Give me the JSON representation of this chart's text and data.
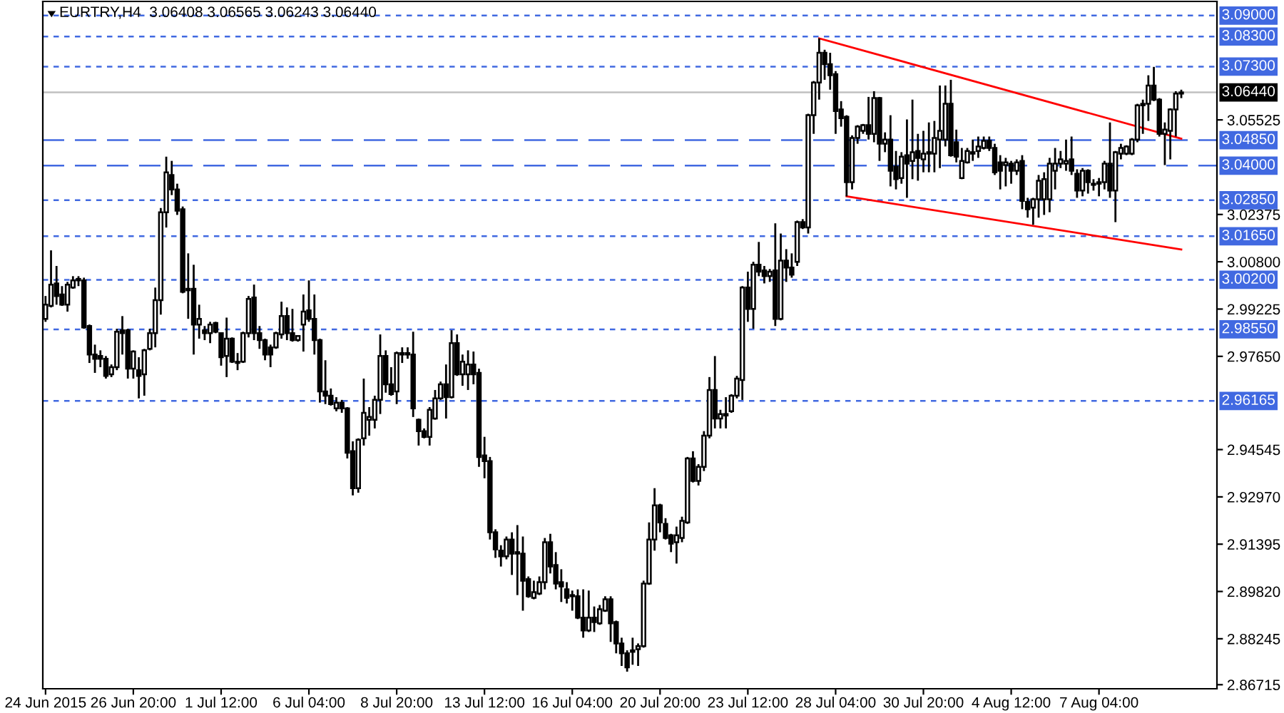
{
  "chart_data": {
    "type": "candlestick",
    "title": "EURTRY,H4  3.06408 3.06565 3.06243 3.06440",
    "categories": [
      "24 Jun 2015",
      null,
      null,
      null,
      null,
      null,
      null,
      null,
      null,
      null,
      null,
      null,
      null,
      null,
      null,
      null,
      "26 Jun 20:00",
      null,
      null,
      null,
      null,
      null,
      null,
      null,
      null,
      null,
      null,
      null,
      null,
      null,
      null,
      null,
      "1 Jul 12:00",
      null,
      null,
      null,
      null,
      null,
      null,
      null,
      null,
      null,
      null,
      null,
      null,
      null,
      null,
      null,
      "6 Jul 04:00",
      null,
      null,
      null,
      null,
      null,
      null,
      null,
      null,
      null,
      null,
      null,
      null,
      null,
      null,
      null,
      "8 Jul 20:00",
      null,
      null,
      null,
      null,
      null,
      null,
      null,
      null,
      null,
      null,
      null,
      null,
      null,
      null,
      null,
      "13 Jul 12:00",
      null,
      null,
      null,
      null,
      null,
      null,
      null,
      null,
      null,
      null,
      null,
      null,
      null,
      null,
      null,
      "16 Jul 04:00",
      null,
      null,
      null,
      null,
      null,
      null,
      null,
      null,
      null,
      null,
      null,
      null,
      null,
      null,
      null,
      "20 Jul 20:00",
      null,
      null,
      null,
      null,
      null,
      null,
      null,
      null,
      null,
      null,
      null,
      null,
      null,
      null,
      null,
      "23 Jul 12:00",
      null,
      null,
      null,
      null,
      null,
      null,
      null,
      null,
      null,
      null,
      null,
      null,
      null,
      null,
      null,
      "28 Jul 04:00",
      null,
      null,
      null,
      null,
      null,
      null,
      null,
      null,
      null,
      null,
      null,
      null,
      null,
      null,
      null,
      "30 Jul 20:00",
      null,
      null,
      null,
      null,
      null,
      null,
      null,
      null,
      null,
      null,
      null,
      null,
      null,
      null,
      null,
      "4 Aug 12:00",
      null,
      null,
      null,
      null,
      null,
      null,
      null,
      null,
      null,
      null,
      null,
      null,
      null,
      null,
      null,
      "7 Aug 04:00",
      null,
      null,
      null,
      null,
      null,
      null,
      null,
      null,
      null,
      null,
      null,
      null,
      null,
      null,
      null
    ],
    "ohlc": [
      [
        2.989,
        2.9966,
        2.988,
        2.9937
      ],
      [
        2.9933,
        3.0118,
        2.9928,
        3.0004
      ],
      [
        3.0008,
        3.0066,
        2.9937,
        2.9966
      ],
      [
        2.9971,
        2.9999,
        2.9933,
        2.9937
      ],
      [
        2.9937,
        3.0013,
        2.9914,
        3.0004
      ],
      [
        2.9994,
        3.0032,
        2.999,
        3.0018
      ],
      [
        3.0018,
        3.0032,
        2.9999,
        3.0023
      ],
      [
        3.0018,
        3.0027,
        2.9857,
        2.9861
      ],
      [
        2.9866,
        2.9871,
        2.9743,
        2.9771
      ],
      [
        2.9771,
        2.9804,
        2.971,
        2.9757
      ],
      [
        2.9766,
        2.9785,
        2.9729,
        2.9757
      ],
      [
        2.9757,
        2.9766,
        2.9691,
        2.97
      ],
      [
        2.9705,
        2.9738,
        2.9696,
        2.9729
      ],
      [
        2.9729,
        2.9857,
        2.9719,
        2.9847
      ],
      [
        2.9852,
        2.9899,
        2.9771,
        2.9842
      ],
      [
        2.9852,
        2.9857,
        2.9691,
        2.9724
      ],
      [
        2.9724,
        2.9785,
        2.9691,
        2.9781
      ],
      [
        2.9719,
        2.9762,
        2.9625,
        2.97
      ],
      [
        2.9705,
        2.979,
        2.9634,
        2.9785
      ],
      [
        2.979,
        2.9857,
        2.9785,
        2.9842
      ],
      [
        2.9842,
        2.9994,
        2.9795,
        2.9952
      ],
      [
        2.9952,
        3.0259,
        2.9904,
        3.0245
      ],
      [
        3.0245,
        3.043,
        3.0194,
        3.0378
      ],
      [
        3.0369,
        3.0416,
        3.0302,
        3.0321
      ],
      [
        3.0321,
        3.034,
        3.0236,
        3.025
      ],
      [
        3.0255,
        3.0264,
        2.9975,
        2.998
      ],
      [
        2.999,
        3.0108,
        2.989,
        2.9985
      ],
      [
        2.999,
        3.007,
        2.9771,
        2.9871
      ],
      [
        2.9871,
        2.9937,
        2.9824,
        2.989
      ],
      [
        2.9852,
        2.9866,
        2.9819,
        2.9842
      ],
      [
        2.9842,
        2.988,
        2.9809,
        2.9871
      ],
      [
        2.9876,
        2.988,
        2.9842,
        2.9847
      ],
      [
        2.9842,
        2.9842,
        2.9734,
        2.9762
      ],
      [
        2.9766,
        2.9894,
        2.9696,
        2.9824
      ],
      [
        2.9824,
        2.9828,
        2.9743,
        2.9747
      ],
      [
        2.9747,
        2.9776,
        2.9719,
        2.9743
      ],
      [
        2.9747,
        2.9847,
        2.9743,
        2.9842
      ],
      [
        2.9842,
        2.9966,
        2.9828,
        2.9956
      ],
      [
        2.9961,
        3.0004,
        2.9819,
        2.9842
      ],
      [
        2.9842,
        2.9866,
        2.979,
        2.9819
      ],
      [
        2.9819,
        2.9824,
        2.9752,
        2.9771
      ],
      [
        2.9795,
        2.9804,
        2.9729,
        2.9771
      ],
      [
        2.9795,
        2.9847,
        2.979,
        2.9842
      ],
      [
        2.9838,
        2.9947,
        2.9824,
        2.9899
      ],
      [
        2.9899,
        2.9928,
        2.9819,
        2.9842
      ],
      [
        2.9842,
        2.9923,
        2.9814,
        2.9819
      ],
      [
        2.9819,
        2.9833,
        2.9814,
        2.9833
      ],
      [
        2.9871,
        2.9971,
        2.9781,
        2.9914
      ],
      [
        2.9918,
        3.0018,
        2.988,
        2.989
      ],
      [
        2.989,
        2.9971,
        2.9771,
        2.9819
      ],
      [
        2.9819,
        2.9824,
        2.9611,
        2.9648
      ],
      [
        2.9648,
        2.9752,
        2.9606,
        2.9634
      ],
      [
        2.9634,
        2.9658,
        2.9601,
        2.9606
      ],
      [
        2.9592,
        2.9629,
        2.9582,
        2.9611
      ],
      [
        2.9611,
        2.962,
        2.9577,
        2.9592
      ],
      [
        2.9592,
        2.9596,
        2.9425,
        2.9444
      ],
      [
        2.9449,
        2.9482,
        2.9302,
        2.9326
      ],
      [
        2.9326,
        2.9492,
        2.9311,
        2.9487
      ],
      [
        2.9492,
        2.9691,
        2.9468,
        2.9577
      ],
      [
        2.9554,
        2.9596,
        2.9501,
        2.9563
      ],
      [
        2.9554,
        2.9634,
        2.9525,
        2.962
      ],
      [
        2.962,
        2.9838,
        2.9573,
        2.9766
      ],
      [
        2.9766,
        2.9785,
        2.9644,
        2.9672
      ],
      [
        2.9672,
        2.9729,
        2.9634,
        2.9639
      ],
      [
        2.9648,
        2.9781,
        2.9606,
        2.9776
      ],
      [
        2.9771,
        2.9795,
        2.9743,
        2.9776
      ],
      [
        2.9771,
        2.9795,
        2.9757,
        2.9776
      ],
      [
        2.9771,
        2.9847,
        2.9563,
        2.9592
      ],
      [
        2.9554,
        2.9558,
        2.9468,
        2.9516
      ],
      [
        2.9516,
        2.9525,
        2.9492,
        2.9497
      ],
      [
        2.9497,
        2.9596,
        2.9468,
        2.9587
      ],
      [
        2.9558,
        2.9653,
        2.9554,
        2.9625
      ],
      [
        2.9625,
        2.9681,
        2.962,
        2.9672
      ],
      [
        2.9672,
        2.9738,
        2.9558,
        2.9629
      ],
      [
        2.9629,
        2.9852,
        2.9625,
        2.9809
      ],
      [
        2.9809,
        2.9838,
        2.97,
        2.9705
      ],
      [
        2.9705,
        2.9771,
        2.9667,
        2.9747
      ],
      [
        2.9705,
        2.9785,
        2.9653,
        2.9738
      ],
      [
        2.9738,
        2.9781,
        2.9672,
        2.9705
      ],
      [
        2.971,
        2.9724,
        2.9397,
        2.943
      ],
      [
        2.9435,
        2.9497,
        2.9359,
        2.9416
      ],
      [
        2.9416,
        2.943,
        2.9155,
        2.9179
      ],
      [
        2.9179,
        2.9189,
        2.9094,
        2.9122
      ],
      [
        2.9118,
        2.9136,
        2.9065,
        2.9099
      ],
      [
        2.9099,
        2.9165,
        2.9089,
        2.9155
      ],
      [
        2.9155,
        2.9179,
        2.9037,
        2.9108
      ],
      [
        2.9108,
        2.9203,
        2.897,
        2.9113
      ],
      [
        2.9108,
        2.9165,
        2.8918,
        2.9018
      ],
      [
        2.9023,
        2.9032,
        2.8961,
        2.8966
      ],
      [
        2.8961,
        2.9018,
        2.8956,
        2.898
      ],
      [
        2.8975,
        2.9032,
        2.897,
        2.9013
      ],
      [
        2.9013,
        2.916,
        2.8989,
        2.9146
      ],
      [
        2.9146,
        2.9174,
        2.9042,
        2.9065
      ],
      [
        2.907,
        2.9113,
        2.8989,
        2.9008
      ],
      [
        2.9013,
        2.9056,
        2.8947,
        2.8999
      ],
      [
        2.8989,
        2.9013,
        2.8942,
        2.8961
      ],
      [
        2.8966,
        2.8985,
        2.8918,
        2.897
      ],
      [
        2.8966,
        2.8989,
        2.889,
        2.8895
      ],
      [
        2.8895,
        2.8989,
        2.8828,
        2.8852
      ],
      [
        2.8852,
        2.8985,
        2.8847,
        2.8895
      ],
      [
        2.8895,
        2.8932,
        2.8847,
        2.888
      ],
      [
        2.8876,
        2.8937,
        2.8871,
        2.8923
      ],
      [
        2.8918,
        2.8966,
        2.8914,
        2.8956
      ],
      [
        2.8956,
        2.8966,
        2.8814,
        2.8876
      ],
      [
        2.888,
        2.8885,
        2.8776,
        2.8809
      ],
      [
        2.8809,
        2.8828,
        2.8734,
        2.8776
      ],
      [
        2.8776,
        2.8786,
        2.8715,
        2.8729
      ],
      [
        2.8781,
        2.8828,
        2.8738,
        2.8786
      ],
      [
        2.879,
        2.8809,
        2.8734,
        2.88
      ],
      [
        2.88,
        2.9018,
        2.8795,
        2.9008
      ],
      [
        2.9008,
        2.9212,
        2.9004,
        2.9155
      ],
      [
        2.9155,
        2.9326,
        2.9118,
        2.9269
      ],
      [
        2.9269,
        2.9274,
        2.9179,
        2.9212
      ],
      [
        2.9207,
        2.9226,
        2.9155,
        2.916
      ],
      [
        2.9169,
        2.9174,
        2.9113,
        2.9141
      ],
      [
        2.9146,
        2.9198,
        2.9075,
        2.9169
      ],
      [
        2.916,
        2.9231,
        2.9146,
        2.9217
      ],
      [
        2.9212,
        2.943,
        2.9207,
        2.9425
      ],
      [
        2.9425,
        2.9449,
        2.9345,
        2.935
      ],
      [
        2.935,
        2.9406,
        2.9335,
        2.9397
      ],
      [
        2.9397,
        2.9516,
        2.9383,
        2.9501
      ],
      [
        2.9501,
        2.9696,
        2.9492,
        2.9653
      ],
      [
        2.9653,
        2.9766,
        2.9525,
        2.9558
      ],
      [
        2.9558,
        2.9587,
        2.9525,
        2.9573
      ],
      [
        2.9568,
        2.9629,
        2.9525,
        2.9573
      ],
      [
        2.9582,
        2.9639,
        2.9577,
        2.9634
      ],
      [
        2.9634,
        2.97,
        2.9625,
        2.9691
      ],
      [
        2.9686,
        2.9999,
        2.962,
        2.9994
      ],
      [
        2.9994,
        3.0047,
        2.988,
        2.9923
      ],
      [
        2.9923,
        3.008,
        2.9857,
        3.007
      ],
      [
        3.007,
        3.0146,
        3.0032,
        3.0047
      ],
      [
        3.0051,
        3.0066,
        3.0008,
        3.0032
      ],
      [
        3.0032,
        3.0056,
        3.0013,
        3.0047
      ],
      [
        3.0051,
        3.0208,
        2.9866,
        2.989
      ],
      [
        2.989,
        3.0174,
        2.9885,
        3.0084
      ],
      [
        3.0084,
        3.0122,
        3.0013,
        3.0061
      ],
      [
        3.0061,
        3.0108,
        3.0027,
        3.0037
      ],
      [
        3.008,
        3.0217,
        3.0066,
        3.0212
      ],
      [
        3.0212,
        3.0222,
        3.0189,
        3.0194
      ],
      [
        3.0194,
        3.0573,
        3.0174,
        3.0568
      ],
      [
        3.0568,
        3.0682,
        3.0506,
        3.0677
      ],
      [
        3.0677,
        3.0824,
        3.062,
        3.0776
      ],
      [
        3.0776,
        3.0786,
        3.0686,
        3.0738
      ],
      [
        3.0738,
        3.0776,
        3.0653,
        3.0701
      ],
      [
        3.0705,
        3.0715,
        3.0506,
        3.0582
      ],
      [
        3.0587,
        3.0615,
        3.053,
        3.0558
      ],
      [
        3.0563,
        3.0568,
        3.0298,
        3.0345
      ],
      [
        3.0345,
        3.0501,
        3.0321,
        3.0492
      ],
      [
        3.0492,
        3.0535,
        3.0473,
        3.053
      ],
      [
        3.0516,
        3.0539,
        3.0506,
        3.0535
      ],
      [
        3.0535,
        3.0629,
        3.0487,
        3.0506
      ],
      [
        3.0506,
        3.0648,
        3.0478,
        3.0625
      ],
      [
        3.0625,
        3.0629,
        3.0416,
        3.0473
      ],
      [
        3.0473,
        3.0511,
        3.0445,
        3.0487
      ],
      [
        3.0487,
        3.0568,
        3.0331,
        3.0383
      ],
      [
        3.0397,
        3.0449,
        3.0321,
        3.0355
      ],
      [
        3.0359,
        3.0445,
        3.034,
        3.043
      ],
      [
        3.0435,
        3.0554,
        3.0293,
        3.0407
      ],
      [
        3.0416,
        3.062,
        3.0355,
        3.0445
      ],
      [
        3.0449,
        3.0506,
        3.035,
        3.0426
      ],
      [
        3.0421,
        3.0516,
        3.0378,
        3.044
      ],
      [
        3.044,
        3.0544,
        3.0378,
        3.0445
      ],
      [
        3.044,
        3.0549,
        3.0378,
        3.0492
      ],
      [
        3.0487,
        3.0667,
        3.0392,
        3.0516
      ],
      [
        3.0487,
        3.0667,
        3.0464,
        3.0606
      ],
      [
        3.0606,
        3.0686,
        3.043,
        3.0435
      ],
      [
        3.0478,
        3.052,
        3.0411,
        3.043
      ],
      [
        3.0359,
        3.0459,
        3.0355,
        3.0416
      ],
      [
        3.0411,
        3.0459,
        3.0407,
        3.0449
      ],
      [
        3.044,
        3.0487,
        3.0416,
        3.0445
      ],
      [
        3.0449,
        3.0497,
        3.0426,
        3.0464
      ],
      [
        3.0459,
        3.0497,
        3.0454,
        3.0483
      ],
      [
        3.0483,
        3.0497,
        3.0449,
        3.0459
      ],
      [
        3.0459,
        3.0473,
        3.0369,
        3.0378
      ],
      [
        3.0411,
        3.0435,
        3.0321,
        3.0383
      ],
      [
        3.0402,
        3.0426,
        3.0331,
        3.0411
      ],
      [
        3.0407,
        3.0416,
        3.034,
        3.0383
      ],
      [
        3.0383,
        3.0421,
        3.0369,
        3.0411
      ],
      [
        3.0416,
        3.0435,
        3.0255,
        3.0283
      ],
      [
        3.0279,
        3.0293,
        3.0227,
        3.0255
      ],
      [
        3.026,
        3.0293,
        3.0203,
        3.0288
      ],
      [
        3.0288,
        3.0369,
        3.0227,
        3.035
      ],
      [
        3.0288,
        3.0378,
        3.0236,
        3.0355
      ],
      [
        3.0288,
        3.0426,
        3.0245,
        3.0407
      ],
      [
        3.0383,
        3.0459,
        3.0321,
        3.0407
      ],
      [
        3.0407,
        3.0449,
        3.0392,
        3.0421
      ],
      [
        3.0407,
        3.0487,
        3.0383,
        3.0416
      ],
      [
        3.0421,
        3.0497,
        3.0369,
        3.0383
      ],
      [
        3.0373,
        3.0388,
        3.0293,
        3.0317
      ],
      [
        3.0317,
        3.0392,
        3.0298,
        3.0383
      ],
      [
        3.0383,
        3.0388,
        3.0307,
        3.0345
      ],
      [
        3.0336,
        3.0355,
        3.0317,
        3.034
      ],
      [
        3.034,
        3.0359,
        3.0298,
        3.0345
      ],
      [
        3.0345,
        3.0416,
        3.0321,
        3.0407
      ],
      [
        3.0407,
        3.0544,
        3.0293,
        3.0317
      ],
      [
        3.0317,
        3.0449,
        3.0212,
        3.0445
      ],
      [
        3.044,
        3.0473,
        3.0421,
        3.0459
      ],
      [
        3.044,
        3.0468,
        3.0435,
        3.0464
      ],
      [
        3.044,
        3.0492,
        3.0435,
        3.0487
      ],
      [
        3.0487,
        3.0606,
        3.0478,
        3.0601
      ],
      [
        3.0606,
        3.062,
        3.0506,
        3.0601
      ],
      [
        3.0606,
        3.0701,
        3.0549,
        3.0667
      ],
      [
        3.0667,
        3.0729,
        3.0615,
        3.062
      ],
      [
        3.062,
        3.0625,
        3.0497,
        3.0506
      ],
      [
        3.0506,
        3.0544,
        3.0402,
        3.052
      ],
      [
        3.0516,
        3.0591,
        3.0421,
        3.0587
      ],
      [
        3.0587,
        3.0648,
        3.0497,
        3.064
      ],
      [
        3.064,
        3.0653,
        3.0625,
        3.0644
      ]
    ],
    "series": [
      {
        "type": "line",
        "color": "#ff0000",
        "values": [
          null,
          null,
          null,
          null,
          null,
          null,
          null,
          null,
          null,
          null,
          null,
          null,
          null,
          null,
          null,
          null,
          null,
          null,
          null,
          null,
          null,
          null,
          null,
          null,
          null,
          null,
          null,
          null,
          null,
          null,
          null,
          null,
          null,
          null,
          null,
          null,
          null,
          null,
          null,
          null,
          null,
          null,
          null,
          null,
          null,
          null,
          null,
          null,
          null,
          null,
          null,
          null,
          null,
          null,
          null,
          null,
          null,
          null,
          null,
          null,
          null,
          null,
          null,
          null,
          null,
          null,
          null,
          null,
          null,
          null,
          null,
          null,
          null,
          null,
          null,
          null,
          null,
          null,
          null,
          null,
          null,
          null,
          null,
          null,
          null,
          null,
          null,
          null,
          null,
          null,
          null,
          null,
          null,
          null,
          null,
          null,
          null,
          null,
          null,
          null,
          null,
          null,
          null,
          null,
          null,
          null,
          null,
          null,
          null,
          null,
          null,
          null,
          null,
          null,
          null,
          null,
          null,
          null,
          null,
          null,
          null,
          null,
          null,
          null,
          null,
          null,
          null,
          null,
          null,
          null,
          null,
          null,
          null,
          null,
          null,
          null,
          null,
          null,
          null,
          null,
          null,
          3.0824,
          null,
          null,
          null,
          null,
          null,
          null,
          null,
          null,
          null,
          null,
          null,
          null,
          null,
          null,
          null,
          null,
          null,
          null,
          null,
          null,
          null,
          null,
          null,
          null,
          null,
          null,
          null,
          null,
          null,
          null,
          null,
          null,
          null,
          null,
          null,
          null,
          null,
          null,
          null,
          null,
          null,
          null,
          null,
          null,
          null,
          null,
          null,
          null,
          null,
          null,
          null,
          null,
          null,
          null,
          null,
          null,
          null,
          null,
          null,
          null,
          null,
          null,
          null,
          null,
          null,
          3.049
        ]
      },
      {
        "type": "line",
        "color": "#ff0000",
        "values": [
          null,
          null,
          null,
          null,
          null,
          null,
          null,
          null,
          null,
          null,
          null,
          null,
          null,
          null,
          null,
          null,
          null,
          null,
          null,
          null,
          null,
          null,
          null,
          null,
          null,
          null,
          null,
          null,
          null,
          null,
          null,
          null,
          null,
          null,
          null,
          null,
          null,
          null,
          null,
          null,
          null,
          null,
          null,
          null,
          null,
          null,
          null,
          null,
          null,
          null,
          null,
          null,
          null,
          null,
          null,
          null,
          null,
          null,
          null,
          null,
          null,
          null,
          null,
          null,
          null,
          null,
          null,
          null,
          null,
          null,
          null,
          null,
          null,
          null,
          null,
          null,
          null,
          null,
          null,
          null,
          null,
          null,
          null,
          null,
          null,
          null,
          null,
          null,
          null,
          null,
          null,
          null,
          null,
          null,
          null,
          null,
          null,
          null,
          null,
          null,
          null,
          null,
          null,
          null,
          null,
          null,
          null,
          null,
          null,
          null,
          null,
          null,
          null,
          null,
          null,
          null,
          null,
          null,
          null,
          null,
          null,
          null,
          null,
          null,
          null,
          null,
          null,
          null,
          null,
          null,
          null,
          null,
          null,
          null,
          null,
          null,
          null,
          null,
          null,
          null,
          null,
          null,
          null,
          null,
          null,
          null,
          3.0298,
          null,
          null,
          null,
          null,
          null,
          null,
          null,
          null,
          null,
          null,
          null,
          null,
          null,
          null,
          null,
          null,
          null,
          null,
          null,
          null,
          null,
          null,
          null,
          null,
          null,
          null,
          null,
          null,
          null,
          null,
          null,
          null,
          null,
          null,
          null,
          null,
          null,
          null,
          null,
          null,
          null,
          null,
          null,
          null,
          null,
          null,
          null,
          null,
          null,
          null,
          null,
          null,
          null,
          null,
          null,
          null,
          null,
          null,
          null,
          null,
          3.0121
        ]
      }
    ],
    "ylim": [
      2.8658,
      3.0947
    ],
    "yticks": [
      {
        "value": 2.86715,
        "label": "2.86715"
      },
      {
        "value": 2.88245,
        "label": "2.88245"
      },
      {
        "value": 2.8982,
        "label": "2.89820"
      },
      {
        "value": 2.91395,
        "label": "2.91395"
      },
      {
        "value": 2.9297,
        "label": "2.92970"
      },
      {
        "value": 2.94545,
        "label": "2.94545"
      },
      {
        "value": 2.9765,
        "label": "2.97650"
      },
      {
        "value": 2.99225,
        "label": "2.99225"
      },
      {
        "value": 3.008,
        "label": "3.00800"
      },
      {
        "value": 3.02375,
        "label": "3.02375"
      },
      {
        "value": 3.05525,
        "label": "3.05525"
      }
    ],
    "tick_labels": "xy",
    "ref_lines": [
      {
        "axis": "y",
        "value": 3.09,
        "label": "3.09000",
        "color": "#4169e1",
        "line_style": "dotted"
      },
      {
        "axis": "y",
        "value": 3.083,
        "label": "3.08300",
        "color": "#4169e1",
        "line_style": "dotted"
      },
      {
        "axis": "y",
        "value": 3.073,
        "label": "3.07300",
        "color": "#4169e1",
        "line_style": "dotted"
      },
      {
        "axis": "y",
        "value": 3.0644,
        "label": "3.06440",
        "color": "#c0c0c0",
        "line_style": "solid"
      },
      {
        "axis": "y",
        "value": 3.0485,
        "label": "3.04850",
        "color": "#4169e1",
        "line_style": "dashed"
      },
      {
        "axis": "y",
        "value": 3.04,
        "label": "3.04000",
        "color": "#4169e1",
        "line_style": "dashed"
      },
      {
        "axis": "y",
        "value": 3.0285,
        "label": "3.02850",
        "color": "#4169e1",
        "line_style": "dotted"
      },
      {
        "axis": "y",
        "value": 3.0165,
        "label": "3.01650",
        "color": "#4169e1",
        "line_style": "dotted"
      },
      {
        "axis": "y",
        "value": 3.002,
        "label": "3.00200",
        "color": "#4169e1",
        "line_style": "dotted"
      },
      {
        "axis": "y",
        "value": 2.9855,
        "label": "2.98550",
        "color": "#4169e1",
        "line_style": "dotted"
      },
      {
        "axis": "y",
        "value": 2.96165,
        "label": "2.96165",
        "color": "#4169e1",
        "line_style": "dotted"
      }
    ]
  }
}
